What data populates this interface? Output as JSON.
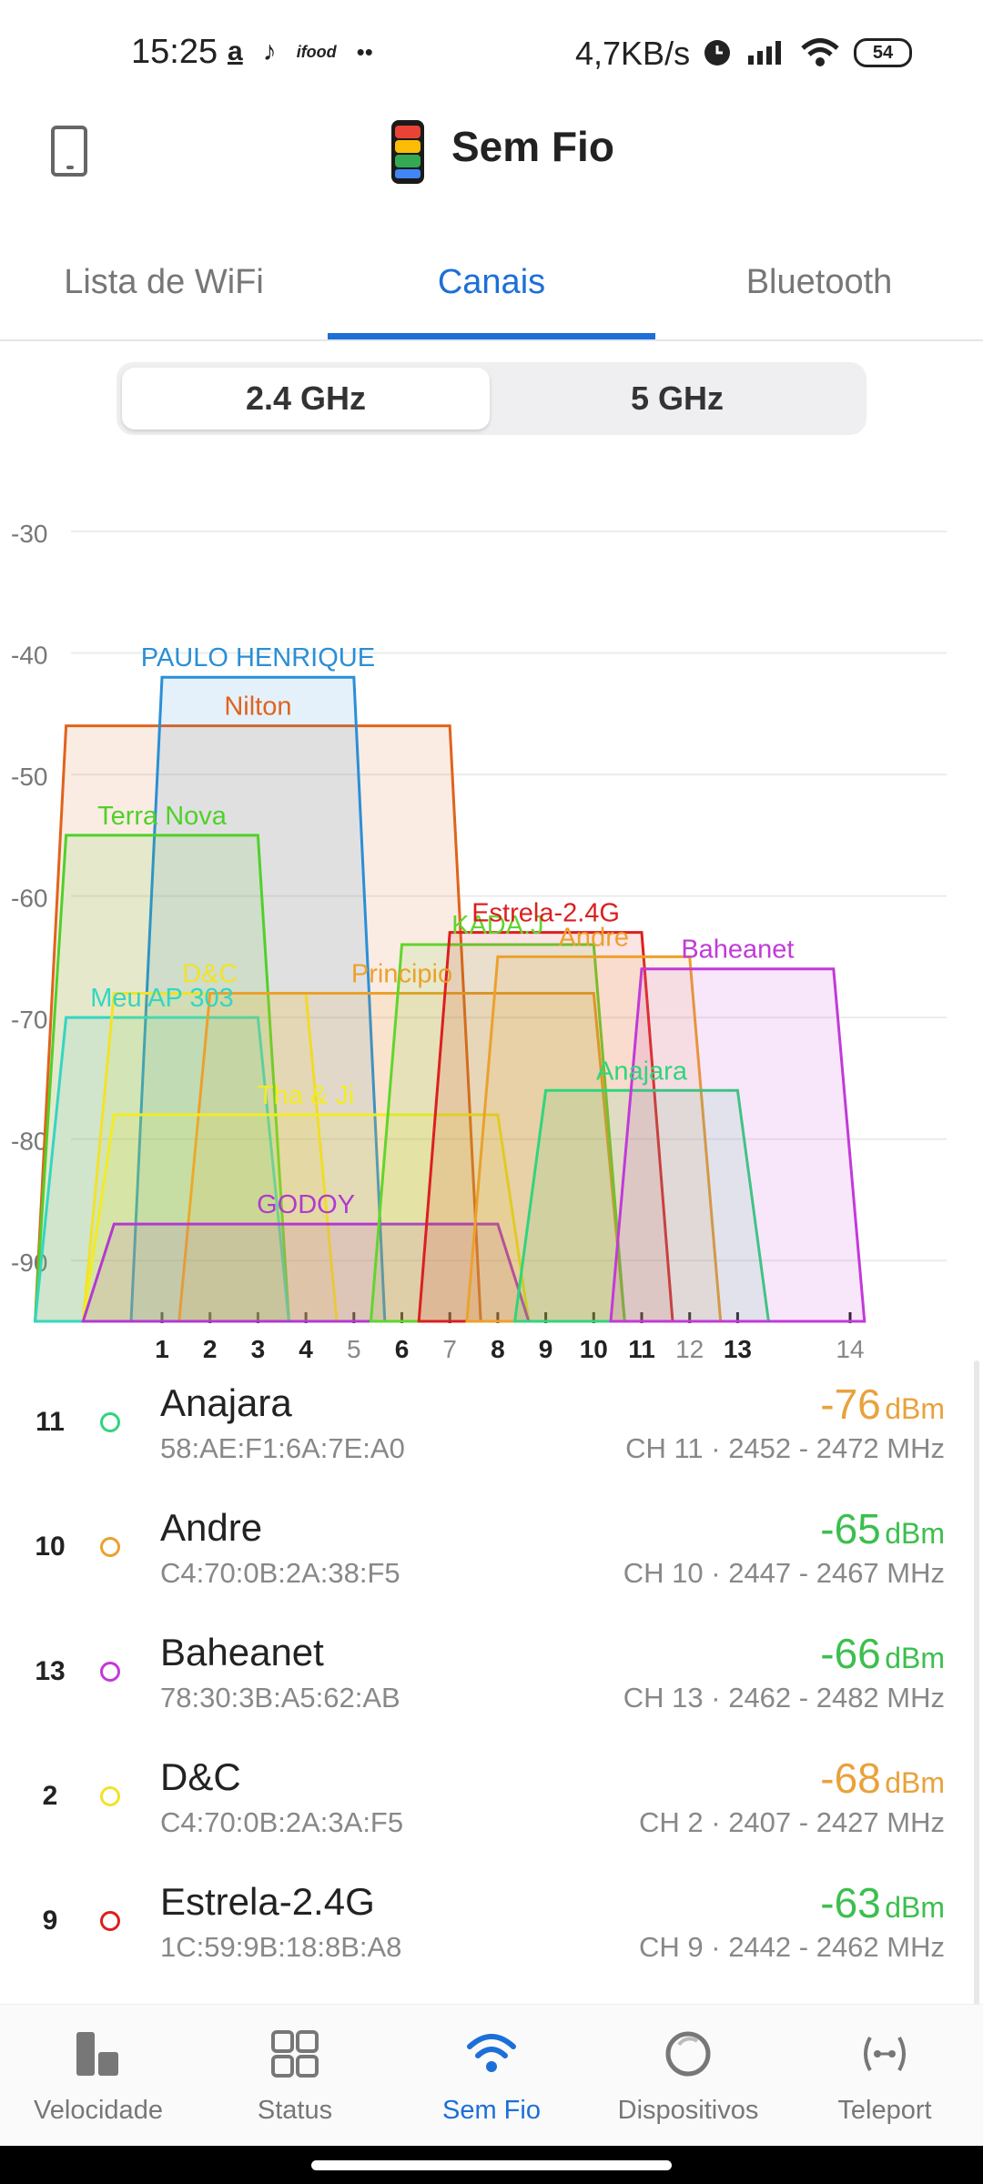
{
  "status_bar": {
    "time": "15:25",
    "left_icons": [
      "amazon-icon",
      "tiktok-icon",
      "ifood-icon",
      "more-dots-icon"
    ],
    "left_glyphs": [
      "a",
      "♪",
      "ifood",
      "••"
    ],
    "net_speed": "4,7KB/s",
    "battery": "54"
  },
  "header": {
    "title": "Sem Fio"
  },
  "tabs": [
    {
      "label": "Lista de WiFi",
      "active": false
    },
    {
      "label": "Canais",
      "active": true
    },
    {
      "label": "Bluetooth",
      "active": false
    }
  ],
  "bands": [
    {
      "label": "2.4 GHz",
      "selected": true
    },
    {
      "label": "5 GHz",
      "selected": false
    }
  ],
  "chart_data": {
    "type": "area",
    "y_ticks": [
      -30,
      -40,
      -50,
      -60,
      -70,
      -80,
      -90
    ],
    "ylim": [
      -95,
      -30
    ],
    "x_ticks": [
      {
        "label": "1",
        "bold": true
      },
      {
        "label": "2",
        "bold": true
      },
      {
        "label": "3",
        "bold": true
      },
      {
        "label": "4",
        "bold": true
      },
      {
        "label": "5",
        "bold": false
      },
      {
        "label": "6",
        "bold": true
      },
      {
        "label": "7",
        "bold": false
      },
      {
        "label": "8",
        "bold": true
      },
      {
        "label": "9",
        "bold": true
      },
      {
        "label": "10",
        "bold": true
      },
      {
        "label": "11",
        "bold": true
      },
      {
        "label": "12",
        "bold": false
      },
      {
        "label": "13",
        "bold": true
      },
      {
        "label": "14",
        "bold": false
      }
    ],
    "grid": true,
    "series": [
      {
        "name": "Nilton",
        "channel": 3,
        "width_channels": 8,
        "dbm": -46,
        "color": "#e0631c"
      },
      {
        "name": "PAULO HENRIQUE",
        "channel": 3,
        "width_channels": 4,
        "dbm": -42,
        "color": "#2a8fd6"
      },
      {
        "name": "Terra Nova",
        "channel": 1,
        "width_channels": 4,
        "dbm": -55,
        "color": "#4fd12a"
      },
      {
        "name": "Meu AP 303",
        "channel": 1,
        "width_channels": 4,
        "dbm": -70,
        "color": "#33d6c2"
      },
      {
        "name": "D&C",
        "channel": 2,
        "width_channels": 4,
        "dbm": -68,
        "color": "#f2e22a"
      },
      {
        "name": "Principio",
        "channel": 6,
        "width_channels": 8,
        "dbm": -68,
        "color": "#eba12c"
      },
      {
        "name": "Tha & Ji",
        "channel": 4,
        "width_channels": 8,
        "dbm": -78,
        "color": "#f0ec26"
      },
      {
        "name": "GODOY",
        "channel": 4,
        "width_channels": 8,
        "dbm": -87,
        "color": "#b13ad1"
      },
      {
        "name": "KADA.J",
        "channel": 8,
        "width_channels": 4,
        "dbm": -64,
        "color": "#61d52d"
      },
      {
        "name": "Estrela-2.4G",
        "channel": 9,
        "width_channels": 4,
        "dbm": -63,
        "color": "#dc1f1f"
      },
      {
        "name": "Andre",
        "channel": 10,
        "width_channels": 4,
        "dbm": -65,
        "color": "#eba12c"
      },
      {
        "name": "Anajara",
        "channel": 11,
        "width_channels": 4,
        "dbm": -76,
        "color": "#30d57c"
      },
      {
        "name": "Baheanet",
        "channel": 13,
        "width_channels": 4,
        "dbm": -66,
        "color": "#c23ad8"
      }
    ]
  },
  "networks": [
    {
      "channel": "11",
      "name": "Anajara",
      "mac": "58:AE:F1:6A:7E:A0",
      "signal": "-76",
      "unit": "dBm",
      "info": "CH 11 · 2452 - 2472 MHz",
      "dot_color": "#30d57c",
      "signal_color": "#e9a23b"
    },
    {
      "channel": "10",
      "name": "Andre",
      "mac": "C4:70:0B:2A:38:F5",
      "signal": "-65",
      "unit": "dBm",
      "info": "CH 10 · 2447 - 2467 MHz",
      "dot_color": "#eba12c",
      "signal_color": "#3cbf4e"
    },
    {
      "channel": "13",
      "name": "Baheanet",
      "mac": "78:30:3B:A5:62:AB",
      "signal": "-66",
      "unit": "dBm",
      "info": "CH 13 · 2462 - 2482 MHz",
      "dot_color": "#c23ad8",
      "signal_color": "#3cbf4e"
    },
    {
      "channel": "2",
      "name": "D&C",
      "mac": "C4:70:0B:2A:3A:F5",
      "signal": "-68",
      "unit": "dBm",
      "info": "CH 2 · 2407 - 2427 MHz",
      "dot_color": "#f2e22a",
      "signal_color": "#e9a23b"
    },
    {
      "channel": "9",
      "name": "Estrela-2.4G",
      "mac": "1C:59:9B:18:8B:A8",
      "signal": "-63",
      "unit": "dBm",
      "info": "CH 9 · 2442 - 2462 MHz",
      "dot_color": "#dc1f1f",
      "signal_color": "#3cbf4e"
    }
  ],
  "bottom_nav": [
    {
      "label": "Velocidade",
      "icon": "speed-bars-icon",
      "active": false
    },
    {
      "label": "Status",
      "icon": "grid-icon",
      "active": false
    },
    {
      "label": "Sem Fio",
      "icon": "wifi-icon",
      "active": true
    },
    {
      "label": "Dispositivos",
      "icon": "devices-circle-icon",
      "active": false
    },
    {
      "label": "Teleport",
      "icon": "teleport-icon",
      "active": false
    }
  ],
  "colors": {
    "accent": "#1d6fd8",
    "text": "#222222",
    "muted": "#888888"
  }
}
